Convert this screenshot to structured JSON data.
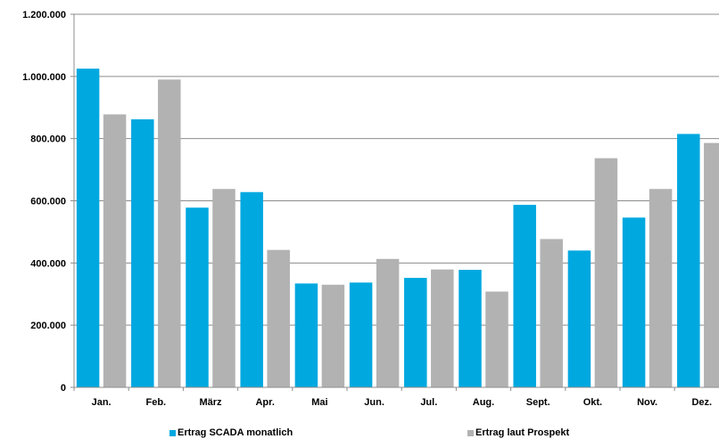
{
  "chart_data": {
    "type": "bar",
    "categories": [
      "Jan.",
      "Feb.",
      "März",
      "Apr.",
      "Mai",
      "Jun.",
      "Jul.",
      "Aug.",
      "Sept.",
      "Okt.",
      "Nov.",
      "Dez."
    ],
    "series": [
      {
        "name": "Ertrag SCADA monatlich",
        "color": "#00A8E0",
        "values": [
          1025000,
          862000,
          578000,
          628000,
          334000,
          337000,
          352000,
          378000,
          587000,
          440000,
          546000,
          815000
        ]
      },
      {
        "name": "Ertrag laut Prospekt",
        "color": "#B2B2B2",
        "values": [
          878000,
          990000,
          638000,
          442000,
          330000,
          413000,
          379000,
          308000,
          477000,
          737000,
          638000,
          786000
        ]
      }
    ],
    "ylim": [
      0,
      1200000
    ],
    "y_ticks": [
      0,
      200000,
      400000,
      600000,
      800000,
      1000000,
      1200000
    ],
    "y_tick_labels": [
      "0",
      "200.000",
      "400.000",
      "600.000",
      "800.000",
      "1.000.000",
      "1.200.000"
    ],
    "gridlines": true,
    "legend_position": "bottom",
    "title": "",
    "xlabel": "",
    "ylabel": ""
  }
}
